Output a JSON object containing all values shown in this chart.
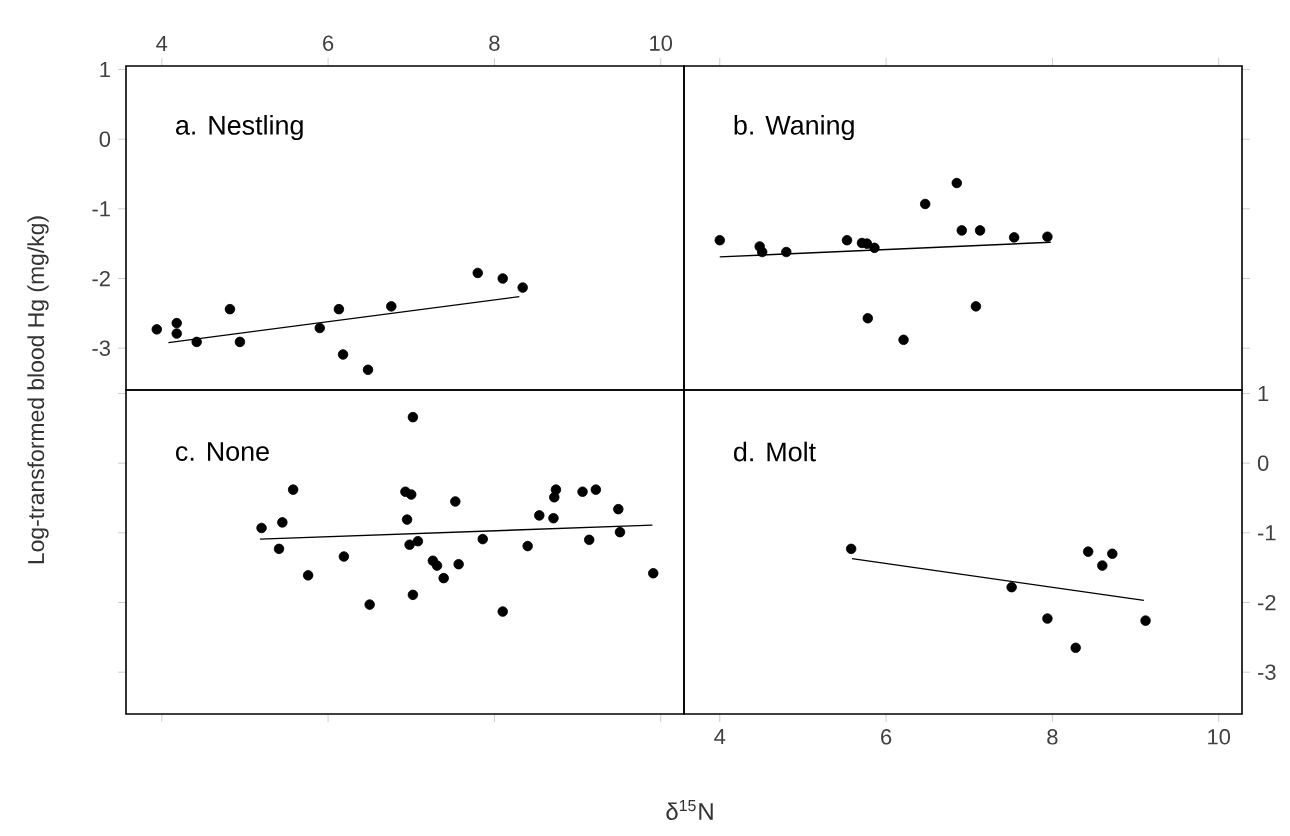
{
  "chart_data": [
    {
      "type": "scatter",
      "title": "a. Nestling",
      "xlabel": "δ$^{15}$N",
      "ylabel": "Log-transformed blood Hg (mg/kg)",
      "xlim": [
        3.57,
        10.28
      ],
      "ylim": [
        -3.6,
        1.05
      ],
      "xticks": [
        4,
        6,
        8,
        10
      ],
      "yticks": [
        -3,
        -2,
        -1,
        0,
        1
      ],
      "marker": "circle",
      "series": [
        {
          "color": "#000000",
          "x": [
            3.94,
            4.18,
            4.18,
            4.42,
            4.82,
            4.94,
            5.9,
            6.13,
            6.18,
            6.48,
            6.76,
            7.8,
            8.1,
            8.34
          ],
          "values": [
            -2.73,
            -2.64,
            -2.79,
            -2.91,
            -2.44,
            -2.91,
            -2.71,
            -2.44,
            -3.09,
            -3.31,
            -2.4,
            -1.92,
            -2.0,
            -2.13
          ]
        },
        {
          "type": "line",
          "marker": "none",
          "color": "#000000",
          "x": [
            4.08,
            8.3
          ],
          "values": [
            -2.92,
            -2.26
          ]
        }
      ]
    },
    {
      "type": "scatter",
      "title": "b. Waning",
      "xlim": [
        3.57,
        10.28
      ],
      "ylim": [
        -3.6,
        1.05
      ],
      "xticks": [
        4,
        6,
        8,
        10
      ],
      "yticks": [
        -3,
        -2,
        -1,
        0,
        1
      ],
      "tick_labels": false,
      "marker": "circle",
      "series": [
        {
          "color": "#000000",
          "x": [
            4.0,
            4.48,
            4.51,
            4.8,
            5.53,
            5.71,
            5.77,
            5.86,
            5.78,
            6.21,
            6.47,
            6.85,
            6.91,
            7.13,
            7.08,
            7.54,
            7.94
          ],
          "values": [
            -1.45,
            -1.54,
            -1.62,
            -1.62,
            -1.45,
            -1.49,
            -1.5,
            -1.56,
            -2.57,
            -2.88,
            -0.93,
            -0.63,
            -1.31,
            -1.31,
            -2.4,
            -1.41,
            -1.4
          ]
        },
        {
          "type": "line",
          "marker": "none",
          "color": "#000000",
          "x": [
            4.0,
            7.98
          ],
          "values": [
            -1.69,
            -1.48
          ]
        }
      ]
    },
    {
      "type": "scatter",
      "title": "c. None",
      "xlim": [
        3.57,
        10.28
      ],
      "ylim": [
        -3.6,
        1.05
      ],
      "xticks": [
        4,
        6,
        8,
        10
      ],
      "yticks": [
        -3,
        -2,
        -1,
        0,
        1
      ],
      "tick_labels": false,
      "marker": "circle",
      "series": [
        {
          "color": "#000000",
          "x": [
            7.02,
            5.58,
            5.2,
            5.45,
            5.41,
            5.76,
            6.19,
            6.5,
            6.93,
            7.0,
            6.95,
            6.98,
            7.08,
            7.02,
            7.26,
            7.31,
            7.39,
            7.53,
            7.57,
            7.86,
            8.1,
            8.4,
            8.54,
            8.72,
            8.74,
            8.71,
            9.06,
            9.22,
            9.14,
            9.49,
            9.51,
            9.91
          ],
          "values": [
            0.66,
            -0.38,
            -0.93,
            -0.85,
            -1.23,
            -1.61,
            -1.34,
            -2.03,
            -0.41,
            -0.45,
            -0.81,
            -1.17,
            -1.12,
            -1.89,
            -1.4,
            -1.47,
            -1.65,
            -0.55,
            -1.45,
            -1.09,
            -2.13,
            -1.19,
            -0.75,
            -0.49,
            -0.38,
            -0.79,
            -0.41,
            -0.38,
            -1.1,
            -0.66,
            -0.99,
            -1.58
          ]
        },
        {
          "type": "line",
          "marker": "none",
          "color": "#000000",
          "x": [
            5.18,
            9.9
          ],
          "values": [
            -1.09,
            -0.89
          ]
        }
      ]
    },
    {
      "type": "scatter",
      "title": "d. Molt",
      "xlim": [
        3.57,
        10.28
      ],
      "ylim": [
        -3.6,
        1.05
      ],
      "xticks": [
        4,
        6,
        8,
        10
      ],
      "yticks": [
        -3,
        -2,
        -1,
        0,
        1
      ],
      "marker": "circle",
      "series": [
        {
          "color": "#000000",
          "x": [
            5.58,
            7.51,
            7.94,
            8.28,
            8.43,
            8.6,
            8.72,
            9.12
          ],
          "values": [
            -1.23,
            -1.78,
            -2.23,
            -2.65,
            -1.27,
            -1.47,
            -1.3,
            -2.26
          ]
        },
        {
          "type": "line",
          "marker": "none",
          "color": "#000000",
          "x": [
            5.59,
            9.1
          ],
          "values": [
            -1.37,
            -1.97
          ]
        }
      ]
    }
  ]
}
